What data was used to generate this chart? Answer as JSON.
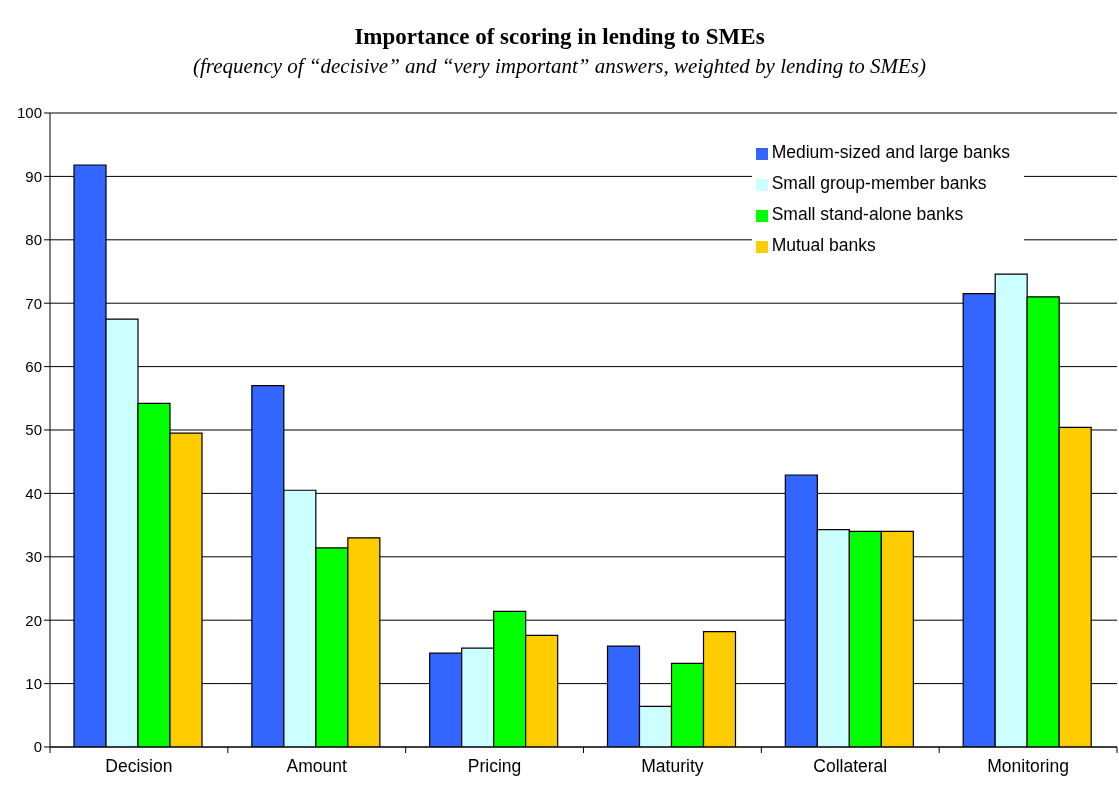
{
  "chart_data": {
    "type": "bar",
    "title": "Importance of scoring in lending to SMEs",
    "subtitle": "(frequency of “decisive” and “very important” answers, weighted by lending to SMEs)",
    "categories": [
      "Decision",
      "Amount",
      "Pricing",
      "Maturity",
      "Collateral",
      "Monitoring"
    ],
    "series": [
      {
        "name": "Medium-sized and large banks",
        "color": "#3366ff",
        "values": [
          91.8,
          57.0,
          14.8,
          15.9,
          42.9,
          71.5
        ]
      },
      {
        "name": "Small group-member banks",
        "color": "#ccffff",
        "values": [
          67.5,
          40.5,
          15.6,
          6.4,
          34.3,
          74.6
        ]
      },
      {
        "name": "Small stand-alone banks",
        "color": "#00ff00",
        "values": [
          54.2,
          31.4,
          21.4,
          13.2,
          34.0,
          71.0
        ]
      },
      {
        "name": "Mutual banks",
        "color": "#ffcc00",
        "values": [
          49.5,
          33.0,
          17.6,
          18.2,
          34.0,
          50.4
        ]
      }
    ],
    "ylim": [
      0,
      100
    ],
    "yticks": [
      0,
      10,
      20,
      30,
      40,
      50,
      60,
      70,
      80,
      90,
      100
    ],
    "grid": "y",
    "legend": "top right"
  }
}
